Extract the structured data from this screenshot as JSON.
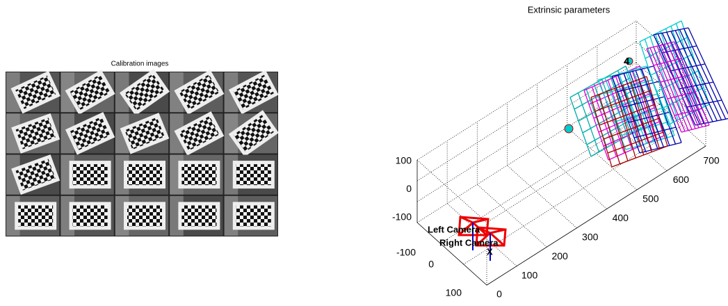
{
  "left_figure": {
    "title": "Calibration images"
  },
  "right_figure": {
    "title": "Extrinsic parameters",
    "z_ticks": [
      "100",
      "0",
      "-100"
    ],
    "y_ticks": [
      "-100",
      "0",
      "100"
    ],
    "x_ticks": [
      "0",
      "100",
      "200",
      "300",
      "400",
      "500",
      "600",
      "700"
    ],
    "labels": {
      "left_camera": "Left Camera",
      "right_camera": "Right Camera",
      "x_axis": "X",
      "plane_4": "4"
    }
  }
}
